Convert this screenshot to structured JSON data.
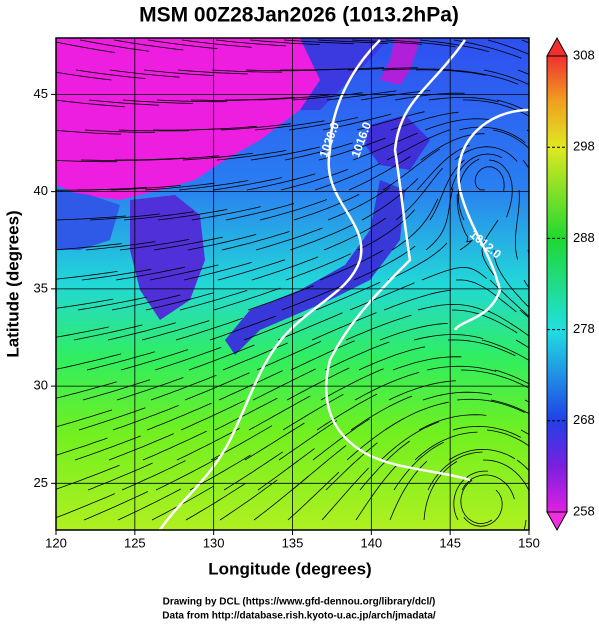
{
  "title": "MSM 00Z28Jan2026 (1013.2hPa)",
  "map": {
    "x_label": "Longitude (degrees)",
    "y_label": "Latitude  (degrees)",
    "xlim": [
      120,
      150
    ],
    "ylim": [
      22.6,
      47.9
    ],
    "xticks": [
      120,
      125,
      130,
      135,
      140,
      145,
      150
    ],
    "yticks": [
      25,
      30,
      35,
      40,
      45
    ],
    "grid": true,
    "contour_labels": [
      "1020.0",
      "1016.0",
      "1012.0"
    ]
  },
  "colorbar": {
    "lim": [
      258,
      308
    ],
    "ticks": [
      258,
      268,
      278,
      288,
      298,
      308
    ]
  },
  "footer": [
    "Drawing by DCL (https://www.gfd-dennou.org/library/dcl/)",
    "Data from http://database.rish.kyoto-u.ac.jp/arch/jmadata/"
  ]
}
